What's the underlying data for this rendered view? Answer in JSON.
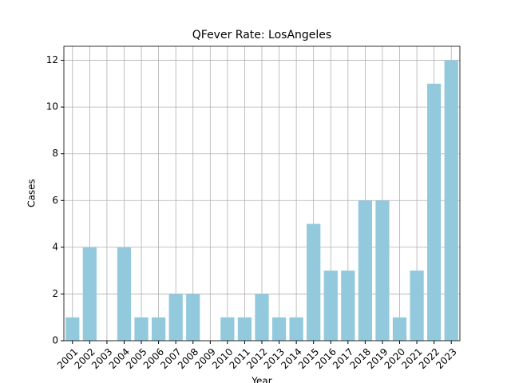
{
  "chart_data": {
    "type": "bar",
    "title": "QFever Rate: LosAngeles",
    "xlabel": "Year",
    "ylabel": "Cases",
    "categories": [
      "2001",
      "2002",
      "2003",
      "2004",
      "2005",
      "2006",
      "2007",
      "2008",
      "2009",
      "2010",
      "2011",
      "2012",
      "2013",
      "2014",
      "2015",
      "2016",
      "2017",
      "2018",
      "2019",
      "2020",
      "2021",
      "2022",
      "2023"
    ],
    "values": [
      1,
      4,
      0,
      4,
      1,
      1,
      2,
      2,
      0,
      1,
      1,
      2,
      1,
      1,
      5,
      3,
      3,
      6,
      6,
      1,
      3,
      11,
      12
    ],
    "color": "#93c9dd",
    "ylim": [
      0,
      12.6
    ],
    "yticks": [
      0,
      2,
      4,
      6,
      8,
      10,
      12
    ],
    "grid": true
  }
}
